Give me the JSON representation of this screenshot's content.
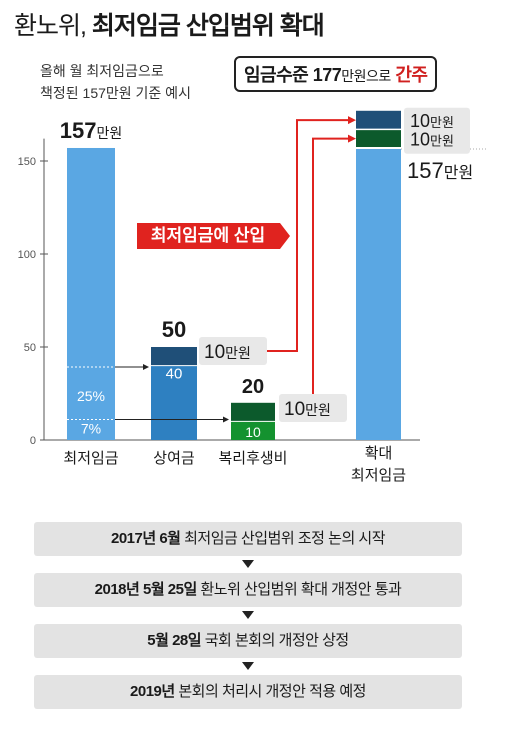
{
  "title_prefix": "환노위,",
  "title_main": "최저임금 산입범위 확대",
  "subtitle_line1": "올해 월 최저임금으로",
  "subtitle_line2": "책정된 157만원 기준 예시",
  "headline": {
    "part1": "임금수준 177",
    "part2": "만원으로",
    "part3": "간주"
  },
  "callout_label": "최저임금에 산입",
  "colors": {
    "light_blue": "#5aa7e3",
    "mid_blue": "#2e80c1",
    "navy": "#1f4f78",
    "dark_green": "#0c5a2c",
    "green": "#14922f",
    "red": "#e0231f",
    "axis": "#555555"
  },
  "chart_data": {
    "type": "bar",
    "yticks": [
      0,
      50,
      100,
      150
    ],
    "ylim": [
      0,
      180
    ],
    "categories": [
      "최저임금",
      "상여금",
      "복리후생비",
      "확대\n최저임금"
    ],
    "bars": [
      {
        "category": "최저임금",
        "total": 157,
        "total_label": "157",
        "unit": "만원",
        "segments": [
          {
            "value": 157
          }
        ],
        "guides": [
          {
            "value": 11,
            "label": "7%"
          },
          {
            "value": 39.25,
            "label": "25%"
          }
        ]
      },
      {
        "category": "상여금",
        "total": 50,
        "total_label": "50",
        "segments": [
          {
            "value": 40,
            "label": "40"
          },
          {
            "value": 10
          }
        ]
      },
      {
        "category": "복리후생비",
        "total": 20,
        "total_label": "20",
        "segments": [
          {
            "value": 10,
            "label": "10"
          },
          {
            "value": 10
          }
        ]
      },
      {
        "category": "확대 최저임금",
        "total": 177,
        "segments": [
          {
            "value": 157,
            "label": "157",
            "unit": "만원"
          },
          {
            "value": 10,
            "label": "10",
            "unit": "만원"
          },
          {
            "value": 10,
            "label": "10",
            "unit": "만원"
          }
        ]
      }
    ],
    "inclusion_labels": [
      {
        "value": "10",
        "unit": "만원"
      },
      {
        "value": "10",
        "unit": "만원"
      }
    ]
  },
  "timeline": [
    {
      "bold": "2017년 6월",
      "text": " 최저임금 산입범위 조정 논의 시작"
    },
    {
      "bold": "2018년 5월 25일",
      "text": " 환노위 산입범위 확대 개정안 통과"
    },
    {
      "bold": "5월 28일",
      "text": " 국회 본회의 개정안 상정"
    },
    {
      "bold": "2019년",
      "text": " 본회의 처리시 개정안 적용 예정"
    }
  ]
}
